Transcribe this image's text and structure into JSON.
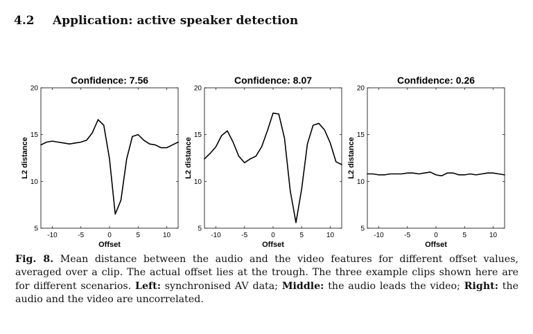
{
  "section": {
    "number": "4.2",
    "title": "Application: active speaker detection"
  },
  "chart_data": [
    {
      "type": "line",
      "title": "Confidence: 7.56",
      "xlabel": "Offset",
      "ylabel": "L2 distance",
      "xlim": [
        -12,
        12
      ],
      "ylim": [
        5,
        20
      ],
      "xticks": [
        -10,
        -5,
        0,
        5,
        10
      ],
      "yticks": [
        5,
        10,
        15,
        20
      ],
      "grid": false,
      "x": [
        -12,
        -11,
        -10,
        -9,
        -8,
        -7,
        -6,
        -5,
        -4,
        -3,
        -2,
        -1,
        0,
        1,
        2,
        3,
        4,
        5,
        6,
        7,
        8,
        9,
        10,
        11,
        12
      ],
      "series": [
        {
          "color": "#000000",
          "values": [
            13.9,
            14.2,
            14.3,
            14.2,
            14.1,
            14.0,
            14.1,
            14.2,
            14.4,
            15.2,
            16.6,
            16.0,
            12.4,
            6.5,
            8.0,
            12.4,
            14.8,
            15.0,
            14.4,
            14.0,
            13.9,
            13.6,
            13.6,
            13.9,
            14.2
          ]
        }
      ]
    },
    {
      "type": "line",
      "title": "Confidence: 8.07",
      "xlabel": "Offset",
      "ylabel": "L2 distance",
      "xlim": [
        -12,
        12
      ],
      "ylim": [
        5,
        20
      ],
      "xticks": [
        -10,
        -5,
        0,
        5,
        10
      ],
      "yticks": [
        5,
        10,
        15,
        20
      ],
      "grid": false,
      "x": [
        -12,
        -11,
        -10,
        -9,
        -8,
        -7,
        -6,
        -5,
        -4,
        -3,
        -2,
        -1,
        0,
        1,
        2,
        3,
        4,
        5,
        6,
        7,
        8,
        9,
        10,
        11,
        12
      ],
      "series": [
        {
          "color": "#000000",
          "values": [
            12.4,
            13.0,
            13.7,
            14.9,
            15.4,
            14.2,
            12.7,
            12.0,
            12.4,
            12.7,
            13.7,
            15.4,
            17.3,
            17.2,
            14.6,
            9.0,
            5.6,
            9.2,
            14.0,
            16.0,
            16.2,
            15.5,
            14.1,
            12.1,
            11.8
          ]
        }
      ]
    },
    {
      "type": "line",
      "title": "Confidence: 0.26",
      "xlabel": "Offset",
      "ylabel": "L2 distance",
      "xlim": [
        -12,
        12
      ],
      "ylim": [
        5,
        20
      ],
      "xticks": [
        -10,
        -5,
        0,
        5,
        10
      ],
      "yticks": [
        5,
        10,
        15,
        20
      ],
      "grid": false,
      "x": [
        -12,
        -11,
        -10,
        -9,
        -8,
        -7,
        -6,
        -5,
        -4,
        -3,
        -2,
        -1,
        0,
        1,
        2,
        3,
        4,
        5,
        6,
        7,
        8,
        9,
        10,
        11,
        12
      ],
      "series": [
        {
          "color": "#000000",
          "values": [
            10.8,
            10.8,
            10.7,
            10.7,
            10.8,
            10.8,
            10.8,
            10.9,
            10.9,
            10.8,
            10.9,
            11.0,
            10.7,
            10.6,
            10.9,
            10.9,
            10.7,
            10.7,
            10.8,
            10.7,
            10.8,
            10.9,
            10.9,
            10.8,
            10.7
          ]
        }
      ]
    }
  ],
  "caption": {
    "label": "Fig. 8.",
    "text_1": " Mean distance between the audio and the video features for different offset values, averaged over a clip. The actual offset lies at the trough. The three example clips shown here are for different scenarios. ",
    "left_label": "Left:",
    "left_text": " synchronised AV data; ",
    "middle_label": "Middle:",
    "middle_text": " the audio leads the video; ",
    "right_label": "Right:",
    "right_text": " the audio and the video are uncorrelated."
  }
}
